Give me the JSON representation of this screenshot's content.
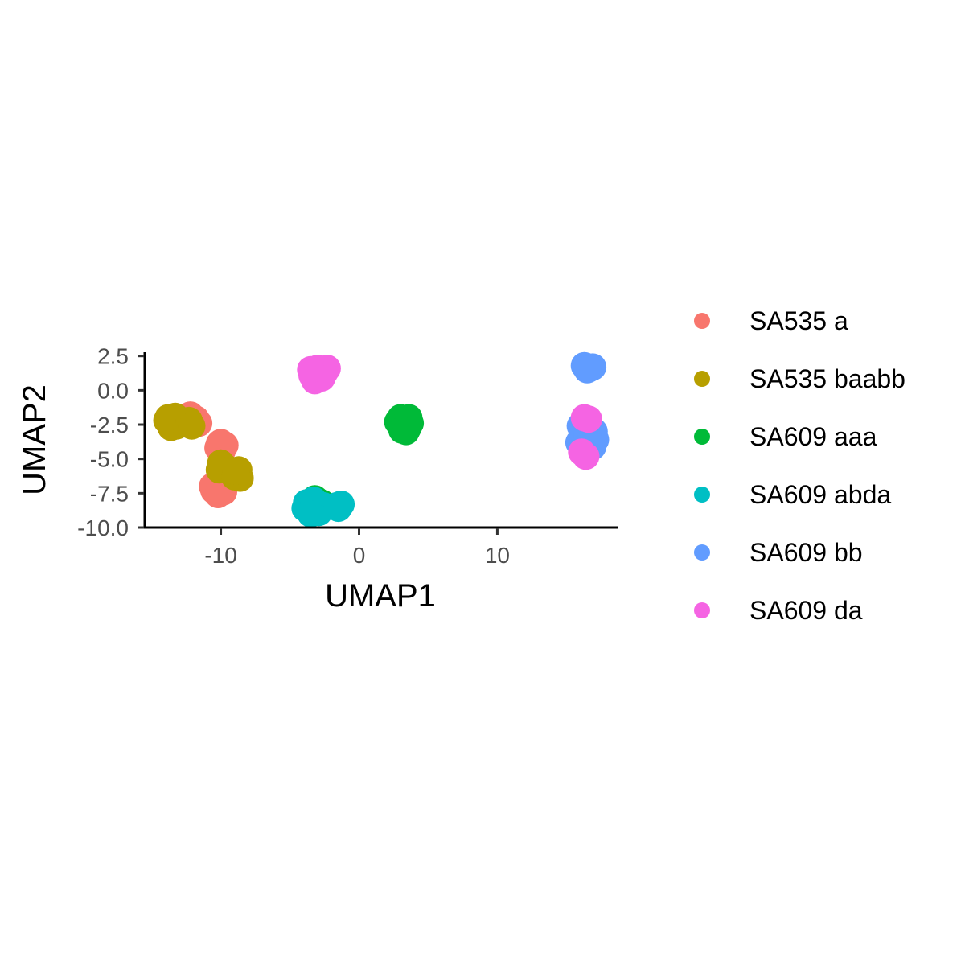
{
  "chart_data": {
    "type": "scatter",
    "title": "",
    "xlabel": "UMAP1",
    "ylabel": "UMAP2",
    "xlim": [
      -15.5,
      18.7
    ],
    "ylim": [
      -10.0,
      2.6
    ],
    "x_ticks": [
      {
        "value": -10,
        "label": "-10"
      },
      {
        "value": 0,
        "label": "0"
      },
      {
        "value": 10,
        "label": "10"
      }
    ],
    "y_ticks": [
      {
        "value": 2.5,
        "label": "2.5"
      },
      {
        "value": 0.0,
        "label": "0.0"
      },
      {
        "value": -2.5,
        "label": "-2.5"
      },
      {
        "value": -5.0,
        "label": "-5.0"
      },
      {
        "value": -7.5,
        "label": "-7.5"
      },
      {
        "value": -10.0,
        "label": "-10.0"
      }
    ],
    "grid": false,
    "legend_position": "right",
    "series": [
      {
        "name": "SA535 a",
        "color": "#F8766D",
        "points": [
          [
            -12.2,
            -1.8
          ],
          [
            -11.8,
            -2.1
          ],
          [
            -12.0,
            -2.5
          ],
          [
            -11.6,
            -2.4
          ],
          [
            -12.4,
            -2.2
          ],
          [
            -10.0,
            -3.8
          ],
          [
            -9.7,
            -4.0
          ],
          [
            -10.2,
            -4.2
          ],
          [
            -9.9,
            -4.4
          ],
          [
            -10.1,
            -3.9
          ],
          [
            -10.3,
            -6.8
          ],
          [
            -10.0,
            -7.0
          ],
          [
            -10.5,
            -7.3
          ],
          [
            -9.8,
            -7.4
          ],
          [
            -10.2,
            -7.6
          ],
          [
            -9.9,
            -6.7
          ],
          [
            -10.6,
            -7.0
          ],
          [
            -10.1,
            -7.2
          ]
        ]
      },
      {
        "name": "SA535 baabb",
        "color": "#B79F00",
        "points": [
          [
            -13.8,
            -2.0
          ],
          [
            -13.5,
            -2.3
          ],
          [
            -13.2,
            -2.6
          ],
          [
            -13.6,
            -2.7
          ],
          [
            -13.9,
            -2.2
          ],
          [
            -13.3,
            -1.9
          ],
          [
            -12.3,
            -2.2
          ],
          [
            -12.1,
            -2.6
          ],
          [
            -10.0,
            -5.3
          ],
          [
            -9.7,
            -5.6
          ],
          [
            -10.1,
            -5.8
          ],
          [
            -8.7,
            -5.8
          ],
          [
            -8.6,
            -6.4
          ],
          [
            -9.0,
            -6.3
          ],
          [
            -8.9,
            -5.9
          ]
        ]
      },
      {
        "name": "SA609 aaa",
        "color": "#00BA38",
        "points": [
          [
            3.0,
            -2.0
          ],
          [
            3.4,
            -2.1
          ],
          [
            3.7,
            -2.4
          ],
          [
            3.2,
            -2.6
          ],
          [
            3.5,
            -2.8
          ],
          [
            2.8,
            -2.3
          ],
          [
            3.3,
            -2.4
          ],
          [
            3.6,
            -2.0
          ],
          [
            3.1,
            -2.9
          ],
          [
            3.4,
            -3.0
          ],
          [
            -3.2,
            -7.9
          ],
          [
            -2.7,
            -8.2
          ]
        ]
      },
      {
        "name": "SA609 abda",
        "color": "#00BFC4",
        "points": [
          [
            -3.8,
            -8.2
          ],
          [
            -3.4,
            -8.5
          ],
          [
            -3.0,
            -8.3
          ],
          [
            -3.6,
            -8.8
          ],
          [
            -3.1,
            -8.7
          ],
          [
            -2.6,
            -8.4
          ],
          [
            -3.9,
            -8.6
          ],
          [
            -3.3,
            -8.0
          ],
          [
            -2.9,
            -8.9
          ],
          [
            -3.5,
            -9.0
          ],
          [
            -1.6,
            -8.4
          ],
          [
            -1.3,
            -8.3
          ],
          [
            -1.5,
            -8.6
          ]
        ]
      },
      {
        "name": "SA609 bb",
        "color": "#619CFF",
        "points": [
          [
            16.3,
            1.8
          ],
          [
            16.7,
            1.6
          ],
          [
            16.9,
            1.7
          ],
          [
            16.5,
            1.5
          ],
          [
            16.0,
            -2.6
          ],
          [
            16.5,
            -2.8
          ],
          [
            17.0,
            -3.0
          ],
          [
            16.2,
            -3.3
          ],
          [
            16.8,
            -3.5
          ],
          [
            15.9,
            -3.8
          ],
          [
            16.4,
            -3.9
          ],
          [
            17.1,
            -3.6
          ],
          [
            16.6,
            -4.2
          ],
          [
            16.2,
            -4.4
          ],
          [
            16.9,
            -4.1
          ],
          [
            16.5,
            -3.2
          ]
        ]
      },
      {
        "name": "SA609 da",
        "color": "#F564E3",
        "points": [
          [
            -3.4,
            1.1
          ],
          [
            -2.9,
            1.4
          ],
          [
            -2.5,
            1.3
          ],
          [
            -3.0,
            1.6
          ],
          [
            -2.7,
            0.9
          ],
          [
            -3.2,
            0.7
          ],
          [
            -2.3,
            1.6
          ],
          [
            -3.5,
            1.5
          ],
          [
            16.3,
            -2.0
          ],
          [
            16.6,
            -2.1
          ],
          [
            16.1,
            -4.5
          ],
          [
            16.4,
            -4.8
          ]
        ]
      }
    ]
  }
}
